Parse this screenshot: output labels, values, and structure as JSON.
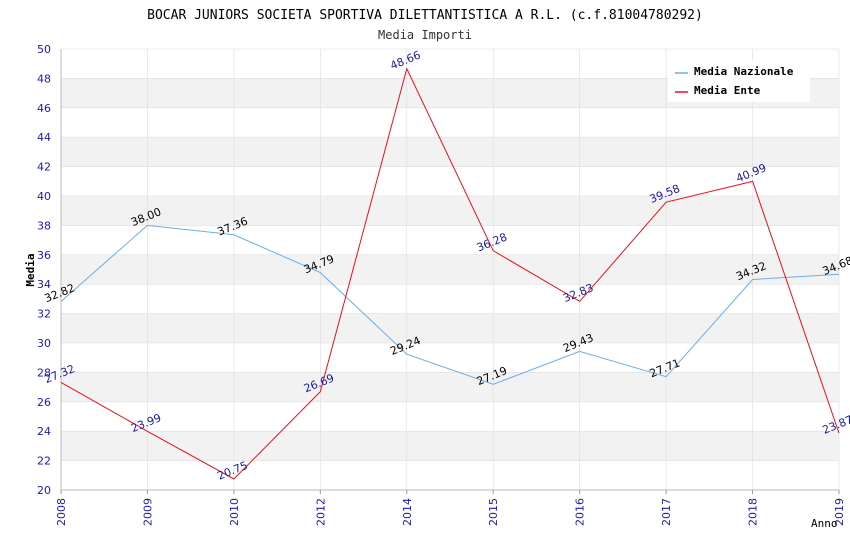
{
  "chart_data": {
    "type": "line",
    "title": "BOCAR JUNIORS SOCIETA SPORTIVA DILETTANTISTICA A R.L. (c.f.81004780292)",
    "subtitle": "Media Importi",
    "xlabel": "Anno",
    "ylabel": "Media",
    "ylim": [
      20,
      50
    ],
    "y_ticks": [
      "20",
      "22",
      "24",
      "26",
      "28",
      "30",
      "32",
      "34",
      "36",
      "38",
      "40",
      "42",
      "44",
      "46",
      "48",
      "50"
    ],
    "categories": [
      "2008",
      "2009",
      "2010",
      "2012",
      "2014",
      "2015",
      "2016",
      "2017",
      "2018",
      "2019"
    ],
    "grid": true,
    "legend_position": "top-right",
    "series": [
      {
        "name": "Media Nazionale",
        "color": "#6aaee8",
        "values": [
          32.82,
          38.0,
          37.36,
          34.79,
          29.24,
          27.19,
          29.43,
          27.71,
          34.32,
          34.68
        ],
        "labels": [
          "32.82",
          "38.00",
          "37.36",
          "34.79",
          "29.24",
          "27.19",
          "29.43",
          "27.71",
          "34.32",
          "34.68"
        ],
        "label_color": "#000000"
      },
      {
        "name": "Media Ente",
        "color": "#e8101c",
        "values": [
          27.32,
          23.99,
          20.75,
          26.69,
          48.66,
          36.28,
          32.83,
          39.58,
          40.99,
          23.87
        ],
        "labels": [
          "27.32",
          "23.99",
          "20.75",
          "26.69",
          "48.66",
          "36.28",
          "32.83",
          "39.58",
          "40.99",
          "23.87"
        ],
        "label_color": "#1a1a99"
      }
    ]
  },
  "colors": {
    "axis_text": "#1a1ab0",
    "band": "#f2f2f2",
    "gridline": "#dddddd"
  }
}
